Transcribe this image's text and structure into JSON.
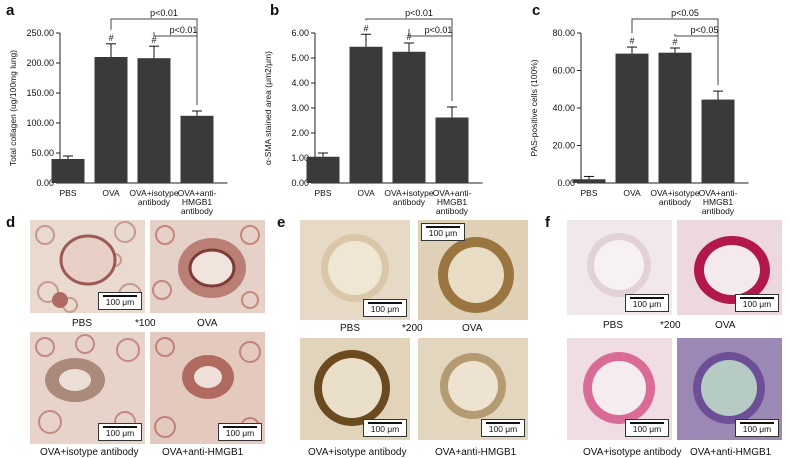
{
  "figure": {
    "colors": {
      "bar": "#3a3a3a",
      "axis": "#222222"
    },
    "charts": [
      {
        "letter": "a",
        "ylabel": "Total collagen (ug/100mg lung)",
        "yticks": [
          "0.00",
          "50.00",
          "100.00",
          "150.00",
          "200.00",
          "250.00"
        ],
        "categories": [
          "PBS",
          "OVA",
          "OVA+isotype|antibody",
          "OVA+anti-|HMGB1|antibody"
        ],
        "hash_marks": [
          "",
          "#",
          "#",
          ""
        ],
        "sig1": "p<0.01",
        "sig2": "p<0.01"
      },
      {
        "letter": "b",
        "ylabel": "α-SMA stained area (μm2/μm)",
        "yticks": [
          "0.00",
          "1.00",
          "2.00",
          "3.00",
          "4.00",
          "5.00",
          "6.00"
        ],
        "categories": [
          "PBS",
          "OVA",
          "OVA+isotype|antibody",
          "OVA+anti-|HMGB1|antibody"
        ],
        "hash_marks": [
          "",
          "#",
          "#",
          ""
        ],
        "sig1": "p<0.01",
        "sig2": "p<0.01"
      },
      {
        "letter": "c",
        "ylabel": "PAS-positive cells (100%)",
        "yticks": [
          "0.00",
          "20.00",
          "40.00",
          "60.00",
          "80.00"
        ],
        "categories": [
          "PBS",
          "OVA",
          "OVA+isotype|antibody",
          "OVA+anti-|HMGB1|antibody"
        ],
        "hash_marks": [
          "",
          "#",
          "#",
          ""
        ],
        "sig1": "p<0.05",
        "sig2": "p<0.05"
      }
    ],
    "micro_panels": [
      {
        "letter": "d",
        "magnification": "*100",
        "labels": [
          "PBS",
          "OVA",
          "OVA+isotype antibody",
          "OVA+anti-HMGB1"
        ],
        "scale": "100 μm"
      },
      {
        "letter": "e",
        "magnification": "*200",
        "labels": [
          "PBS",
          "OVA",
          "OVA+isotype antibody",
          "OVA+anti-HMGB1"
        ],
        "scale": "100 μm"
      },
      {
        "letter": "f",
        "magnification": "*200",
        "labels": [
          "PBS",
          "OVA",
          "OVA+isotype antibody",
          "OVA+anti-HMGB1"
        ],
        "scale": "100 μm"
      }
    ]
  },
  "chart_data": [
    {
      "type": "bar",
      "categories": [
        "PBS",
        "OVA",
        "OVA+isotype antibody",
        "OVA+anti-HMGB1 antibody"
      ],
      "values": [
        40,
        210,
        208,
        112
      ],
      "errors": [
        5,
        22,
        20,
        8
      ],
      "ylabel": "Total collagen (ug/100mg lung)",
      "ylim": [
        0,
        250
      ],
      "annotations": [
        "#",
        "#",
        "p<0.01 (OVA vs OVA+anti-HMGB1 antibody)",
        "p<0.01 (OVA+isotype antibody vs OVA+anti-HMGB1 antibody)"
      ]
    },
    {
      "type": "bar",
      "categories": [
        "PBS",
        "OVA",
        "OVA+isotype antibody",
        "OVA+anti-HMGB1 antibody"
      ],
      "values": [
        1.05,
        5.45,
        5.25,
        2.62
      ],
      "errors": [
        0.15,
        0.5,
        0.35,
        0.42
      ],
      "ylabel": "α-SMA stained area (μm2/μm)",
      "ylim": [
        0,
        6
      ],
      "annotations": [
        "#",
        "#",
        "p<0.01 (OVA vs OVA+anti-HMGB1 antibody)",
        "p<0.01 (OVA+isotype antibody vs OVA+anti-HMGB1 antibody)"
      ]
    },
    {
      "type": "bar",
      "categories": [
        "PBS",
        "OVA",
        "OVA+isotype antibody",
        "OVA+anti-HMGB1 antibody"
      ],
      "values": [
        2,
        69,
        69.5,
        44.5
      ],
      "errors": [
        1.5,
        3.5,
        2.5,
        4.5
      ],
      "ylabel": "PAS-positive cells (100%)",
      "ylim": [
        0,
        80
      ],
      "annotations": [
        "#",
        "#",
        "p<0.05 (OVA vs OVA+anti-HMGB1 antibody)",
        "p<0.05 (OVA+isotype antibody vs OVA+anti-HMGB1 antibody)"
      ]
    }
  ]
}
